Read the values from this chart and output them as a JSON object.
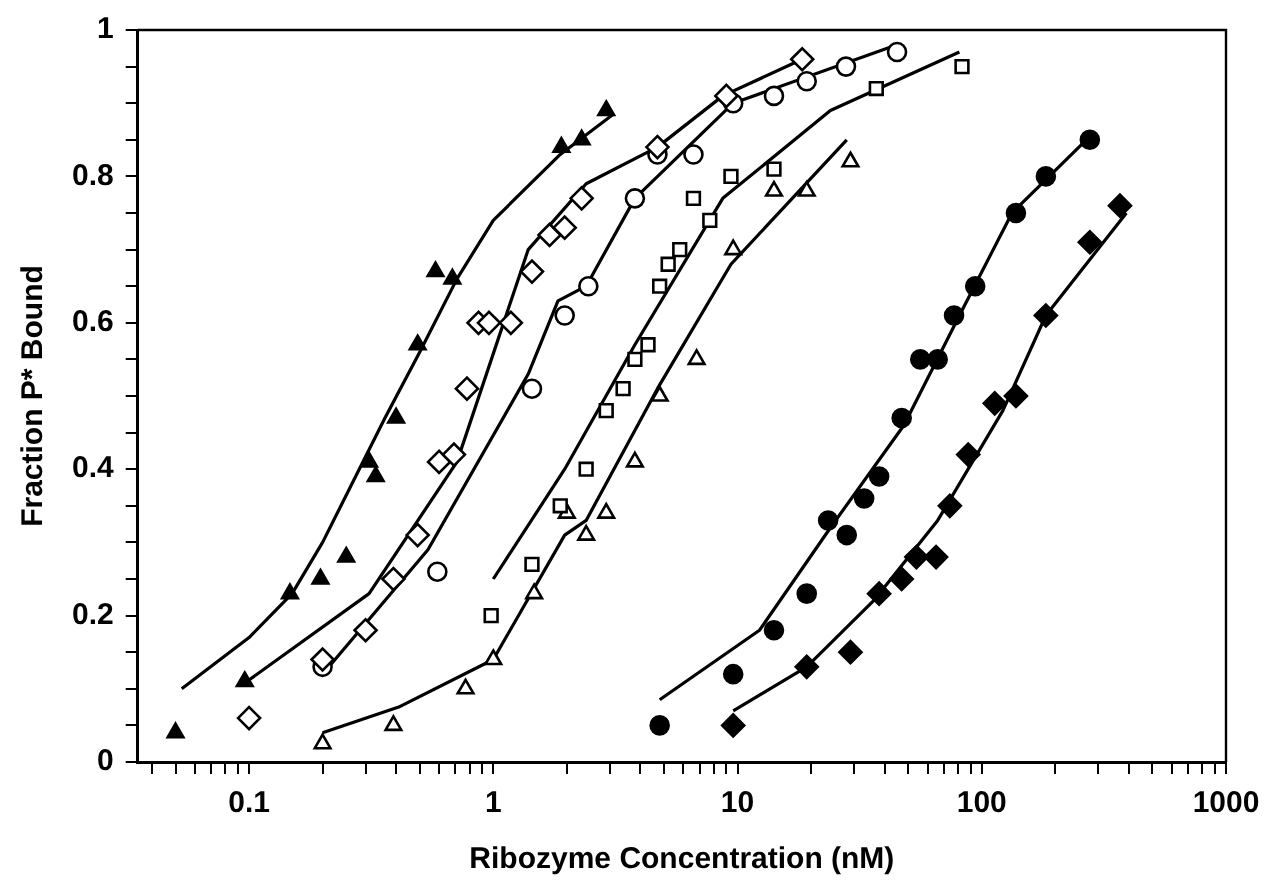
{
  "chart_data": {
    "type": "scatter",
    "xlabel": "Ribozyme Concentration (nM)",
    "ylabel": "Fraction P* Bound",
    "log": "x",
    "grid": false,
    "legend": false,
    "xlim": [
      0.035,
      1000
    ],
    "ylim": [
      0,
      1
    ],
    "xticks": [
      {
        "value": 0.04,
        "label": null
      },
      {
        "value": 0.05,
        "label": null
      },
      {
        "value": 0.06,
        "label": null
      },
      {
        "value": 0.07,
        "label": null
      },
      {
        "value": 0.08,
        "label": null
      },
      {
        "value": 0.09,
        "label": null
      },
      0.1,
      {
        "value": 0.2,
        "label": null
      },
      {
        "value": 0.3,
        "label": null
      },
      {
        "value": 0.4,
        "label": null
      },
      {
        "value": 0.5,
        "label": null
      },
      {
        "value": 0.6,
        "label": null
      },
      {
        "value": 0.7,
        "label": null
      },
      {
        "value": 0.8,
        "label": null
      },
      {
        "value": 0.9,
        "label": null
      },
      1,
      {
        "value": 2,
        "label": null
      },
      {
        "value": 3,
        "label": null
      },
      {
        "value": 4,
        "label": null
      },
      {
        "value": 5,
        "label": null
      },
      {
        "value": 6,
        "label": null
      },
      {
        "value": 7,
        "label": null
      },
      {
        "value": 8,
        "label": null
      },
      {
        "value": 9,
        "label": null
      },
      10,
      {
        "value": 20,
        "label": null
      },
      {
        "value": 30,
        "label": null
      },
      {
        "value": 40,
        "label": null
      },
      {
        "value": 50,
        "label": null
      },
      {
        "value": 60,
        "label": null
      },
      {
        "value": 70,
        "label": null
      },
      {
        "value": 80,
        "label": null
      },
      {
        "value": 90,
        "label": null
      },
      100,
      {
        "value": 200,
        "label": null
      },
      {
        "value": 300,
        "label": null
      },
      {
        "value": 400,
        "label": null
      },
      {
        "value": 500,
        "label": null
      },
      {
        "value": 600,
        "label": null
      },
      {
        "value": 700,
        "label": null
      },
      {
        "value": 800,
        "label": null
      },
      {
        "value": 900,
        "label": null
      },
      1000
    ],
    "yticks": [
      0,
      {
        "value": 0.05,
        "label": null
      },
      {
        "value": 0.1,
        "label": null
      },
      {
        "value": 0.15,
        "label": null
      },
      0.2,
      {
        "value": 0.25,
        "label": null
      },
      {
        "value": 0.3,
        "label": null
      },
      {
        "value": 0.35,
        "label": null
      },
      0.4,
      {
        "value": 0.45,
        "label": null
      },
      {
        "value": 0.5,
        "label": null
      },
      {
        "value": 0.55,
        "label": null
      },
      0.6,
      {
        "value": 0.65,
        "label": null
      },
      {
        "value": 0.7,
        "label": null
      },
      {
        "value": 0.75,
        "label": null
      },
      0.8,
      {
        "value": 0.85,
        "label": null
      },
      {
        "value": 0.9,
        "label": null
      },
      {
        "value": 0.95,
        "label": null
      },
      1
    ],
    "series": [
      {
        "marker": "triangle",
        "color": "#000000",
        "x": [
          0.05,
          0.096,
          0.147,
          0.196,
          0.25,
          0.31,
          0.33,
          0.4,
          0.49,
          0.58,
          0.68,
          1.9,
          2.3,
          2.9
        ],
        "values": [
          0.04,
          0.11,
          0.23,
          0.25,
          0.28,
          0.41,
          0.39,
          0.47,
          0.57,
          0.67,
          0.66,
          0.84,
          0.85,
          0.89
        ]
      },
      {
        "type": "line",
        "color": "#000000",
        "x": [
          0.053,
          0.1,
          0.15,
          0.2,
          0.36,
          0.5,
          0.71,
          1,
          1.88,
          3.1
        ],
        "values": [
          0.1,
          0.17,
          0.23,
          0.3,
          0.47,
          0.56,
          0.66,
          0.74,
          0.83,
          0.885
        ]
      },
      {
        "marker": "diamond",
        "color": "#ffffff",
        "x": [
          0.1,
          0.2,
          0.3,
          0.39,
          0.49,
          0.6,
          0.69,
          0.78,
          0.87,
          0.96,
          1.18,
          1.44,
          1.7,
          1.96,
          2.3,
          4.7,
          9,
          18.4
        ],
        "values": [
          0.06,
          0.14,
          0.18,
          0.25,
          0.31,
          0.41,
          0.42,
          0.51,
          0.6,
          0.6,
          0.6,
          0.67,
          0.72,
          0.73,
          0.77,
          0.84,
          0.91,
          0.96
        ]
      },
      {
        "type": "line",
        "color": "#000000",
        "x": [
          0.098,
          0.31,
          0.71,
          1.39,
          2.4,
          4.7,
          8.7,
          18.4
        ],
        "values": [
          0.11,
          0.23,
          0.41,
          0.7,
          0.79,
          0.84,
          0.91,
          0.96
        ]
      },
      {
        "marker": "circle",
        "color": "#ffffff",
        "x": [
          0.2,
          0.59,
          1.44,
          1.96,
          2.45,
          3.8,
          4.7,
          6.6,
          9.6,
          14.1,
          19.2,
          27.8,
          45
        ],
        "values": [
          0.13,
          0.26,
          0.51,
          0.61,
          0.65,
          0.77,
          0.83,
          0.83,
          0.9,
          0.91,
          0.93,
          0.95,
          0.97
        ]
      },
      {
        "type": "line",
        "color": "#000000",
        "x": [
          0.2,
          0.54,
          1.39,
          1.84,
          2.4,
          3.8,
          9.6,
          45
        ],
        "values": [
          0.12,
          0.29,
          0.53,
          0.63,
          0.65,
          0.77,
          0.9,
          0.98
        ]
      },
      {
        "marker": "square",
        "color": "#ffffff",
        "x": [
          0.98,
          1.44,
          1.88,
          2.4,
          2.9,
          3.4,
          3.8,
          4.3,
          4.8,
          5.2,
          5.8,
          6.6,
          7.7,
          9.4,
          14.1,
          37,
          83
        ],
        "values": [
          0.2,
          0.27,
          0.35,
          0.4,
          0.48,
          0.51,
          0.55,
          0.57,
          0.65,
          0.68,
          0.7,
          0.77,
          0.74,
          0.8,
          0.81,
          0.92,
          0.95
        ]
      },
      {
        "type": "line",
        "color": "#000000",
        "x": [
          1,
          1.96,
          3.8,
          8.7,
          24,
          81
        ],
        "values": [
          0.25,
          0.4,
          0.57,
          0.77,
          0.89,
          0.97
        ]
      },
      {
        "marker": "triangle",
        "color": "#ffffff",
        "x": [
          0.2,
          0.39,
          0.77,
          1,
          1.47,
          2,
          2.4,
          2.9,
          3.8,
          4.8,
          6.8,
          9.6,
          14.1,
          19.2,
          29
        ],
        "values": [
          0.025,
          0.05,
          0.1,
          0.14,
          0.23,
          0.34,
          0.31,
          0.34,
          0.41,
          0.5,
          0.55,
          0.7,
          0.78,
          0.78,
          0.82
        ]
      },
      {
        "type": "line",
        "color": "#000000",
        "x": [
          0.2,
          0.41,
          1,
          1.96,
          2.4,
          4.7,
          9.4,
          28
        ],
        "values": [
          0.04,
          0.075,
          0.14,
          0.31,
          0.33,
          0.51,
          0.68,
          0.85
        ]
      },
      {
        "marker": "circle",
        "color": "#000000",
        "x": [
          4.8,
          9.6,
          14.1,
          19.2,
          23.5,
          28,
          33,
          38,
          47,
          56,
          66,
          77,
          94,
          138,
          183,
          277
        ],
        "values": [
          0.05,
          0.12,
          0.18,
          0.23,
          0.33,
          0.31,
          0.36,
          0.39,
          0.47,
          0.55,
          0.55,
          0.61,
          0.65,
          0.75,
          0.8,
          0.85
        ]
      },
      {
        "type": "line",
        "color": "#000000",
        "x": [
          4.8,
          12.3,
          24,
          48,
          81,
          133,
          288
        ],
        "values": [
          0.085,
          0.18,
          0.32,
          0.46,
          0.61,
          0.75,
          0.86
        ]
      },
      {
        "marker": "diamond",
        "color": "#000000",
        "x": [
          9.6,
          19.2,
          29,
          38,
          47,
          54,
          65,
          74,
          88,
          113,
          138,
          183,
          277,
          368
        ],
        "values": [
          0.05,
          0.13,
          0.15,
          0.23,
          0.25,
          0.28,
          0.28,
          0.35,
          0.42,
          0.49,
          0.5,
          0.61,
          0.71,
          0.76
        ]
      },
      {
        "type": "line",
        "color": "#000000",
        "x": [
          9.6,
          19.2,
          36,
          66,
          122,
          183,
          391
        ],
        "values": [
          0.07,
          0.13,
          0.22,
          0.33,
          0.48,
          0.61,
          0.75
        ]
      }
    ]
  }
}
